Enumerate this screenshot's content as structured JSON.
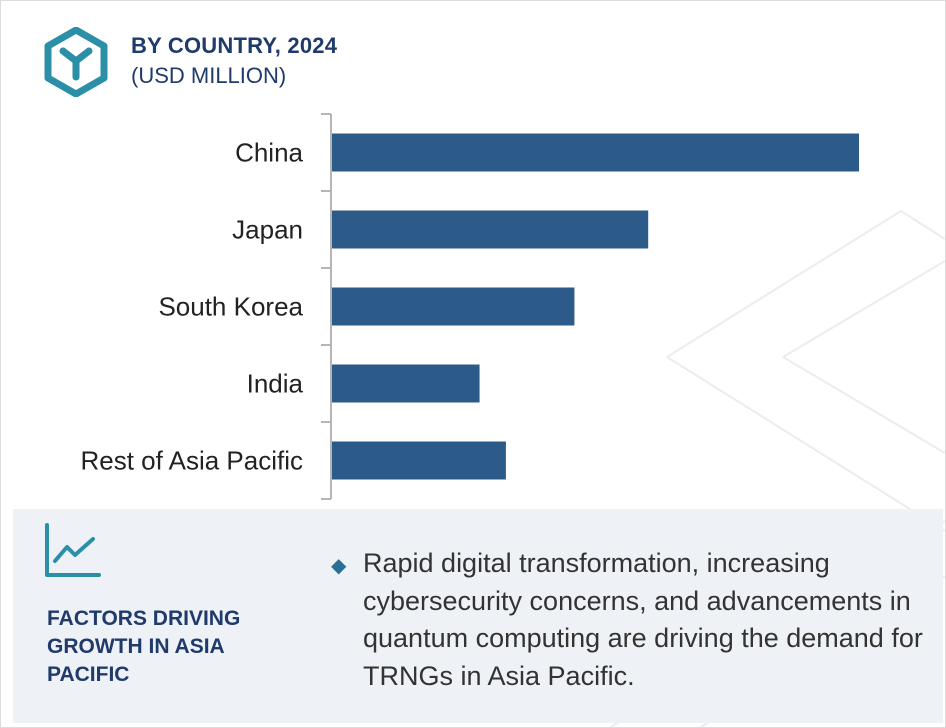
{
  "header": {
    "title": "BY COUNTRY, 2024",
    "subtitle": "(USD MILLION)",
    "logo_icon": "cube-y-icon"
  },
  "chart_data": {
    "type": "bar",
    "orientation": "horizontal",
    "categories": [
      "China",
      "Japan",
      "South Korea",
      "India",
      "Rest of Asia Pacific"
    ],
    "values": [
      100,
      60,
      46,
      28,
      33
    ],
    "value_axis": "unlabeled, relative magnitudes",
    "title": "BY COUNTRY, 2024",
    "xlabel": "",
    "ylabel": "",
    "bar_color": "#2c5b8a",
    "grid": false
  },
  "factors": {
    "icon": "trend-chart-icon",
    "heading": "FACTORS DRIVING GROWTH IN ASIA PACIFIC",
    "bullet_icon": "diamond-bullet-icon",
    "bullet": "Rapid digital transformation, increasing cybersecurity concerns, and advancements in quantum computing are driving the demand for TRNGs in Asia Pacific."
  },
  "colors": {
    "accent": "#2a8fa7",
    "title": "#1f3a6b",
    "panel": "#eef1f6",
    "bar": "#2c5b8a"
  }
}
